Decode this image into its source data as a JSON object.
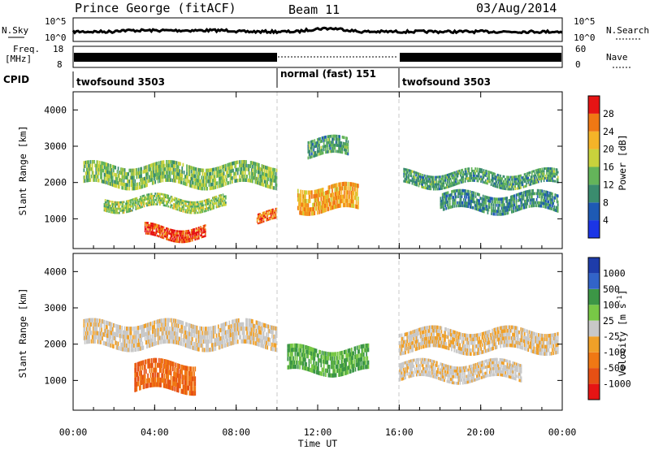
{
  "header": {
    "station": "Prince George (fitACF)",
    "beam": "Beam 11",
    "date": "03/Aug/2014"
  },
  "noise_panel": {
    "left_label": "N.Sky",
    "right_label": "N.Search",
    "left_ticks": [
      "10^5",
      "10^0"
    ],
    "right_ticks": [
      "10^5",
      "10^0"
    ]
  },
  "freq_panel": {
    "left_label_1": "Freq.",
    "left_label_2": "[MHz]",
    "right_label": "Nave",
    "left_ticks": [
      "18",
      "8"
    ],
    "right_ticks": [
      "60",
      "0"
    ]
  },
  "cpid": {
    "label": "CPID",
    "segments": [
      {
        "name": "twofsound 3503",
        "start_hour": 0,
        "end_hour": 10
      },
      {
        "name": "normal (fast) 151",
        "start_hour": 10,
        "end_hour": 16
      },
      {
        "name": "twofsound 3503",
        "start_hour": 16,
        "end_hour": 24
      }
    ]
  },
  "chart_data": [
    {
      "type": "heatmap",
      "panel": "power",
      "ylabel": "Slant Range [km]",
      "xlabel": "Time UT",
      "x_range_hours": [
        0,
        24
      ],
      "ylim": [
        180,
        4500
      ],
      "y_ticks": [
        1000,
        2000,
        3000,
        4000
      ],
      "colorbar": {
        "label": "Power [dB]",
        "ticks": [
          "4",
          "8",
          "12",
          "16",
          "20",
          "24",
          "28"
        ],
        "colors": [
          "#1b35e6",
          "#1e5ab4",
          "#3a8c6e",
          "#64b45a",
          "#c8d23c",
          "#f5b428",
          "#f07814",
          "#e61414"
        ]
      },
      "echo_bands": [
        {
          "t": [
            0.5,
            10.0
          ],
          "range_km": [
            1900,
            2500
          ],
          "level": 0.45
        },
        {
          "t": [
            1.5,
            7.5
          ],
          "range_km": [
            1250,
            1600
          ],
          "level": 0.5
        },
        {
          "t": [
            3.5,
            6.5
          ],
          "range_km": [
            450,
            800
          ],
          "level": 0.95
        },
        {
          "t": [
            9.0,
            10.0
          ],
          "range_km": [
            900,
            1200
          ],
          "level": 0.85
        },
        {
          "t": [
            11.0,
            14.0
          ],
          "range_km": [
            1200,
            1900
          ],
          "level": 0.75
        },
        {
          "t": [
            11.5,
            13.5
          ],
          "range_km": [
            2700,
            3200
          ],
          "level": 0.35
        },
        {
          "t": [
            16.2,
            23.8
          ],
          "range_km": [
            1900,
            2300
          ],
          "level": 0.35
        },
        {
          "t": [
            18.0,
            23.8
          ],
          "range_km": [
            1200,
            1700
          ],
          "level": 0.3
        }
      ]
    },
    {
      "type": "heatmap",
      "panel": "velocity",
      "ylabel": "Slant Range [km]",
      "xlabel": "Time UT",
      "x_range_hours": [
        0,
        24
      ],
      "ylim": [
        180,
        4500
      ],
      "y_ticks": [
        1000,
        2000,
        3000,
        4000
      ],
      "colorbar": {
        "label": "Velocity [m s^-1]",
        "ticks": [
          "1000",
          "500",
          "100",
          "25",
          "-25",
          "-100",
          "-500",
          "-1000"
        ],
        "colors": [
          "#1e3caa",
          "#3264c8",
          "#3c9646",
          "#78c846",
          "#c8c8c8",
          "#f0a028",
          "#f07814",
          "#e65014",
          "#e61414"
        ]
      },
      "echo_bands": [
        {
          "t": [
            0.5,
            10.0
          ],
          "range_km": [
            1900,
            2600
          ],
          "level": -0.05
        },
        {
          "t": [
            3.0,
            6.0
          ],
          "range_km": [
            700,
            1500
          ],
          "level": -0.6
        },
        {
          "t": [
            10.5,
            14.5
          ],
          "range_km": [
            1200,
            1900
          ],
          "level": 0.4
        },
        {
          "t": [
            16.0,
            23.8
          ],
          "range_km": [
            1800,
            2400
          ],
          "level": -0.1
        },
        {
          "t": [
            16.0,
            22.0
          ],
          "range_km": [
            1000,
            1500
          ],
          "level": -0.05
        }
      ]
    }
  ],
  "x_axis": {
    "ticks": [
      "00:00",
      "04:00",
      "08:00",
      "12:00",
      "16:00",
      "20:00",
      "00:00"
    ],
    "label": "Time UT"
  }
}
